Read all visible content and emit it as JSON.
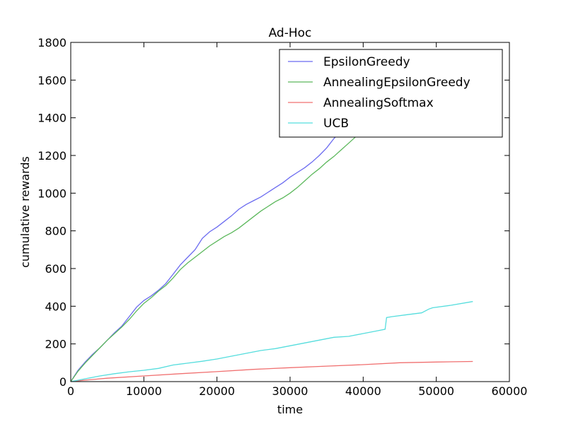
{
  "chart_data": {
    "type": "line",
    "title": "Ad-Hoc",
    "xlabel": "time",
    "ylabel": "cumulative rewards",
    "xlim": [
      0,
      60000
    ],
    "ylim": [
      0,
      1800
    ],
    "x_ticks": [
      0,
      10000,
      20000,
      30000,
      40000,
      50000,
      60000
    ],
    "y_ticks": [
      0,
      200,
      400,
      600,
      800,
      1000,
      1200,
      1400,
      1600,
      1800
    ],
    "x_tick_labels": [
      "0",
      "10000",
      "20000",
      "30000",
      "40000",
      "50000",
      "60000"
    ],
    "y_tick_labels": [
      "0",
      "200",
      "400",
      "600",
      "800",
      "1000",
      "1200",
      "1400",
      "1600",
      "1800"
    ],
    "grid": false,
    "legend_position": "top-right",
    "series": [
      {
        "name": "EpsilonGreedy",
        "color": "#6b6bf0",
        "x": [
          0,
          1000,
          2000,
          3000,
          4000,
          5000,
          6000,
          7000,
          8000,
          9000,
          10000,
          11000,
          12000,
          13000,
          14000,
          15000,
          16000,
          17000,
          18000,
          19000,
          20000,
          21000,
          22000,
          23000,
          24000,
          25000,
          26000,
          27000,
          28000,
          29000,
          30000,
          31000,
          32000,
          33000,
          34000,
          35000,
          36000,
          37000
        ],
        "y": [
          0,
          60,
          105,
          145,
          180,
          220,
          260,
          295,
          345,
          395,
          430,
          455,
          485,
          520,
          570,
          620,
          660,
          700,
          760,
          795,
          820,
          850,
          880,
          915,
          940,
          960,
          980,
          1005,
          1030,
          1055,
          1085,
          1110,
          1135,
          1165,
          1200,
          1240,
          1290,
          1330
        ]
      },
      {
        "name": "AnnealingEpsilonGreedy",
        "color": "#5cb85c",
        "x": [
          0,
          1000,
          2000,
          3000,
          4000,
          5000,
          6000,
          7000,
          8000,
          9000,
          10000,
          11000,
          12000,
          13000,
          14000,
          15000,
          16000,
          17000,
          18000,
          19000,
          20000,
          21000,
          22000,
          23000,
          24000,
          25000,
          26000,
          27000,
          28000,
          29000,
          30000,
          31000,
          32000,
          33000,
          34000,
          35000,
          36000,
          37000,
          38000,
          39000
        ],
        "y": [
          0,
          55,
          100,
          140,
          180,
          220,
          255,
          290,
          330,
          375,
          415,
          445,
          480,
          510,
          550,
          595,
          630,
          660,
          690,
          720,
          745,
          770,
          790,
          815,
          845,
          875,
          905,
          930,
          955,
          975,
          1000,
          1030,
          1065,
          1100,
          1130,
          1165,
          1195,
          1230,
          1265,
          1300
        ]
      },
      {
        "name": "AnnealingSoftmax",
        "color": "#f07070",
        "x": [
          0,
          2000,
          5000,
          10000,
          15000,
          20000,
          25000,
          30000,
          35000,
          40000,
          45000,
          50000,
          55000
        ],
        "y": [
          0,
          8,
          18,
          30,
          42,
          53,
          65,
          74,
          82,
          90,
          100,
          104,
          107
        ]
      },
      {
        "name": "UCB",
        "color": "#55dddd",
        "x": [
          0,
          2000,
          4000,
          6000,
          8000,
          10000,
          12000,
          14000,
          16000,
          18000,
          20000,
          22000,
          24000,
          26000,
          28000,
          30000,
          32000,
          34000,
          36000,
          38000,
          40000,
          42000,
          43000,
          43200,
          44000,
          46000,
          48000,
          49000,
          49500,
          52000,
          55000
        ],
        "y": [
          0,
          15,
          30,
          42,
          52,
          60,
          70,
          88,
          98,
          108,
          120,
          135,
          150,
          165,
          175,
          190,
          205,
          220,
          235,
          240,
          255,
          270,
          278,
          340,
          345,
          355,
          365,
          385,
          392,
          405,
          425
        ]
      }
    ]
  }
}
